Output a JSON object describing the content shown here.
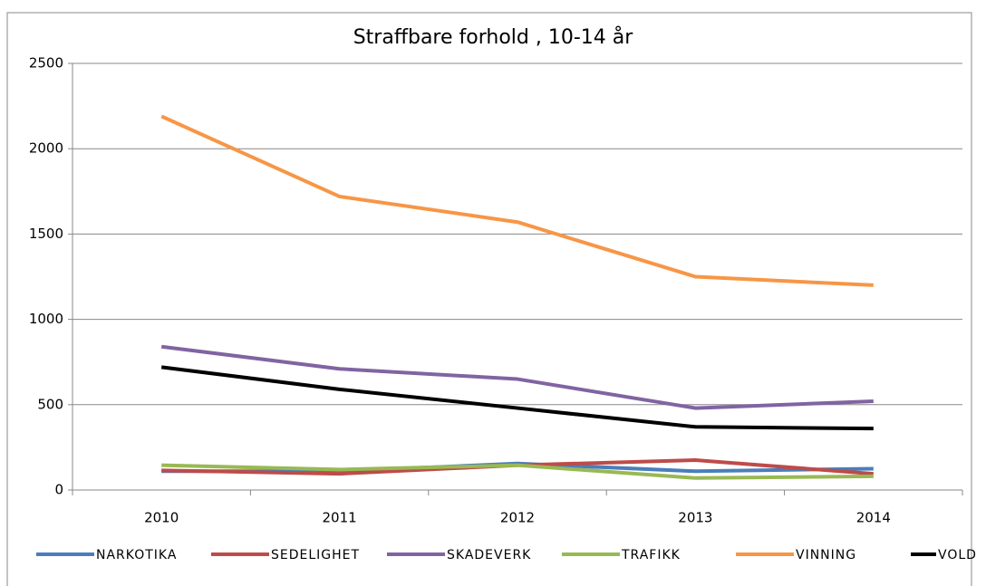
{
  "chart_data": {
    "type": "line",
    "title": "Straffbare forhold , 10-14 år",
    "categories": [
      "2010",
      "2011",
      "2012",
      "2013",
      "2014"
    ],
    "series": [
      {
        "name": "NARKOTIKA",
        "color": "#4a7ebb",
        "values": [
          110,
          110,
          155,
          110,
          125
        ]
      },
      {
        "name": "SEDELIGHET",
        "color": "#be4b48",
        "values": [
          115,
          95,
          145,
          175,
          95
        ]
      },
      {
        "name": "SKADEVERK",
        "color": "#8064a2",
        "values": [
          840,
          710,
          650,
          480,
          520
        ]
      },
      {
        "name": "TRAFIKK",
        "color": "#98b954",
        "values": [
          145,
          120,
          145,
          70,
          80
        ]
      },
      {
        "name": "VINNING",
        "color": "#f79646",
        "values": [
          2190,
          1720,
          1570,
          1250,
          1200
        ]
      },
      {
        "name": "VOLD",
        "color": "#000000",
        "values": [
          720,
          590,
          480,
          370,
          360
        ]
      }
    ],
    "ylim": [
      0,
      2500
    ],
    "yticks": [
      0,
      500,
      1000,
      1500,
      2000,
      2500
    ],
    "grid": true,
    "legend": "bottom"
  }
}
